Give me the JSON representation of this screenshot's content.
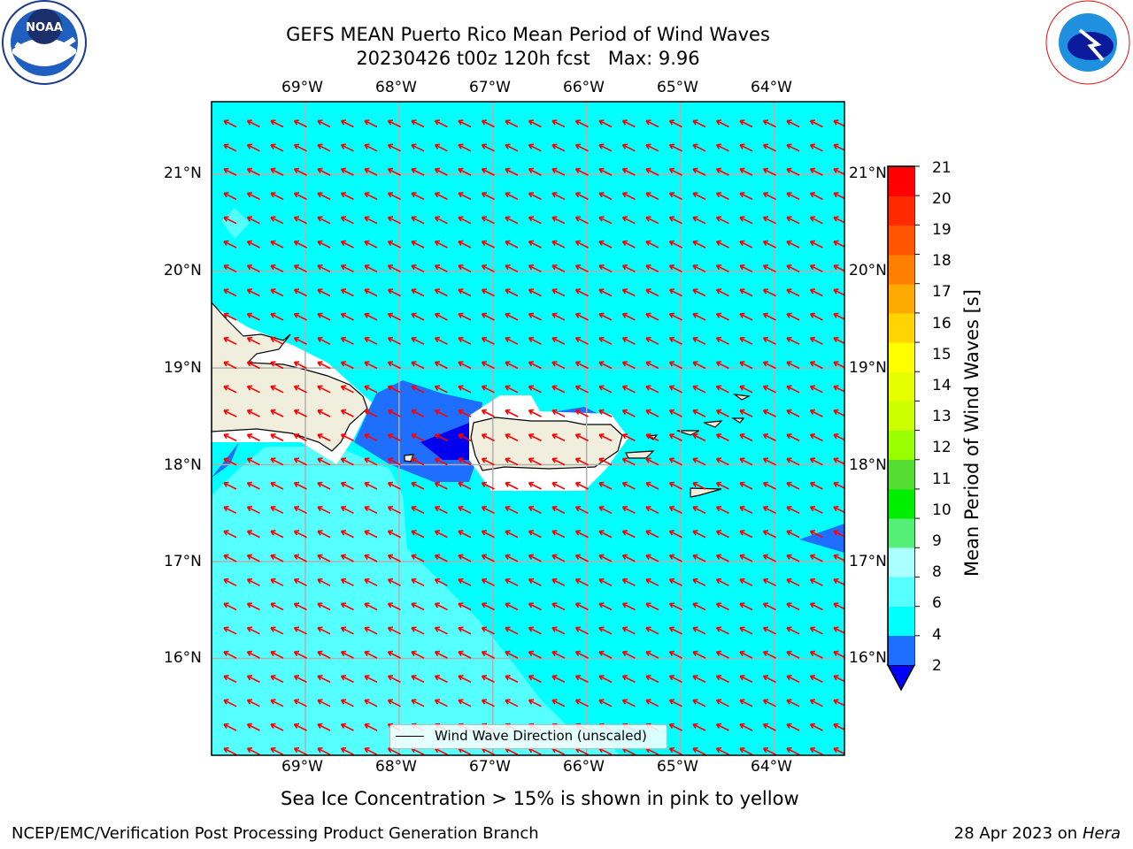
{
  "title_line1": "GEFS MEAN Puerto Rico Mean Period of Wind Waves",
  "title_line2": "20230426 t00z 120h fcst   Max: 9.96",
  "longitude_labels": [
    "69°W",
    "68°W",
    "67°W",
    "66°W",
    "65°W",
    "64°W"
  ],
  "latitude_labels": [
    "21°N",
    "20°N",
    "19°N",
    "18°N",
    "17°N",
    "16°N"
  ],
  "map_extent": {
    "lon_min": -70.0,
    "lon_max": -63.25,
    "lat_min": 15.0,
    "lat_max": 21.75
  },
  "legend_label": "Wind Wave Direction (unscaled)",
  "colorbar": {
    "title": "Mean Period of Wind Waves [s]",
    "ticks": [
      "21",
      "20",
      "19",
      "18",
      "17",
      "16",
      "15",
      "14",
      "13",
      "12",
      "11",
      "10",
      "9",
      "8",
      "6",
      "4",
      "2"
    ],
    "colors": [
      "#ff0000",
      "#ff2a00",
      "#ff5500",
      "#ff8000",
      "#ffaa00",
      "#ffd400",
      "#ffff00",
      "#e6ff00",
      "#ccff00",
      "#99ff00",
      "#55dd33",
      "#00ee00",
      "#55ee77",
      "#aaffff",
      "#55ffff",
      "#00ffff",
      "#1e6fff",
      "#0000ff"
    ]
  },
  "colors": {
    "ocean": "#00ffff",
    "ocean_lighter": "#55ffff",
    "ocean_blue": "#1e6fff",
    "ocean_dark": "#0000ee",
    "land": "#f0eedc",
    "arrow": "#ff0000",
    "grid": "#b0b0b0"
  },
  "ice_note": "Sea Ice Concentration > 15% is shown in pink to yellow",
  "footer_left": "NCEP/EMC/Verification Post Processing Product Generation Branch",
  "footer_right_date": "28 Apr 2023 on ",
  "footer_right_machine": "Hera",
  "logos": {
    "left": "NOAA",
    "right": "NATIONAL WEATHER SERVICE"
  }
}
